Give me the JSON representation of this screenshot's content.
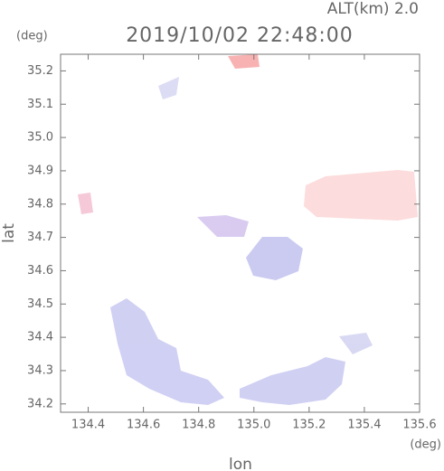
{
  "chart_data": {
    "type": "image",
    "title": "2019/10/02 22:48:00",
    "alt_label": "ALT(km)  2.0",
    "y_unit": "(deg)",
    "x_unit": "(deg)",
    "xlabel": "lon",
    "ylabel": "lat",
    "xlim": [
      134.3,
      135.6
    ],
    "ylim": [
      34.175,
      35.25
    ],
    "xticks": [
      134.4,
      134.6,
      134.8,
      {
        "value": 135,
        "label": "135.0"
      },
      135.2,
      135.4,
      135.6
    ],
    "yticks": [
      34.2,
      34.3,
      34.4,
      34.5,
      34.6,
      34.7,
      34.8,
      34.9,
      {
        "value": 35,
        "label": "35.0"
      },
      35.1,
      35.2
    ]
  }
}
